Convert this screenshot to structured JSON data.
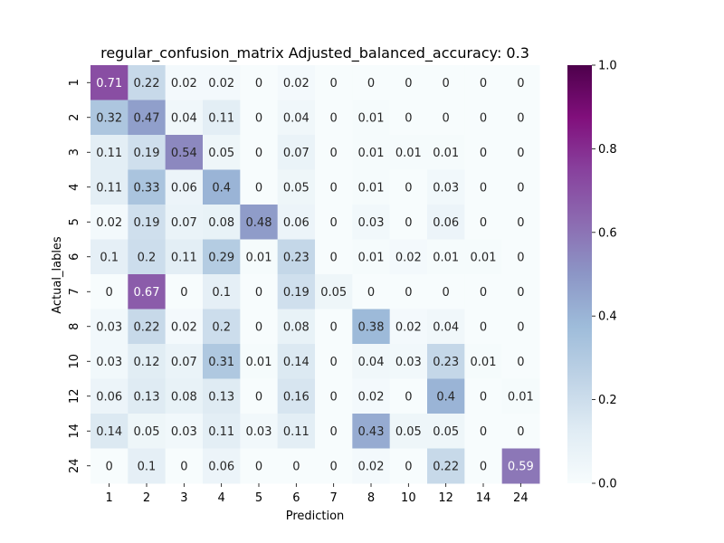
{
  "chart_data": {
    "type": "heatmap",
    "title": "regular_confusion_matrix Adjusted_balanced_accuracy: 0.3",
    "xlabel": "Prediction",
    "ylabel": "Actual_lables",
    "x_categories": [
      "1",
      "2",
      "3",
      "4",
      "5",
      "6",
      "7",
      "8",
      "10",
      "12",
      "14",
      "24"
    ],
    "y_categories": [
      "1",
      "2",
      "3",
      "4",
      "5",
      "6",
      "7",
      "8",
      "10",
      "12",
      "14",
      "24"
    ],
    "values": [
      [
        0.71,
        0.22,
        0.02,
        0.02,
        0,
        0.02,
        0,
        0,
        0,
        0,
        0,
        0
      ],
      [
        0.32,
        0.47,
        0.04,
        0.11,
        0,
        0.04,
        0,
        0.01,
        0,
        0,
        0,
        0
      ],
      [
        0.11,
        0.19,
        0.54,
        0.05,
        0,
        0.07,
        0,
        0.01,
        0.01,
        0.01,
        0,
        0
      ],
      [
        0.11,
        0.33,
        0.06,
        0.4,
        0,
        0.05,
        0,
        0.01,
        0,
        0.03,
        0,
        0
      ],
      [
        0.02,
        0.19,
        0.07,
        0.08,
        0.48,
        0.06,
        0,
        0.03,
        0,
        0.06,
        0,
        0
      ],
      [
        0.1,
        0.2,
        0.11,
        0.29,
        0.01,
        0.23,
        0,
        0.01,
        0.02,
        0.01,
        0.01,
        0
      ],
      [
        0,
        0.67,
        0,
        0.1,
        0,
        0.19,
        0.05,
        0,
        0,
        0,
        0,
        0
      ],
      [
        0.03,
        0.22,
        0.02,
        0.2,
        0,
        0.08,
        0,
        0.38,
        0.02,
        0.04,
        0,
        0
      ],
      [
        0.03,
        0.12,
        0.07,
        0.31,
        0.01,
        0.14,
        0,
        0.04,
        0.03,
        0.23,
        0.01,
        0
      ],
      [
        0.06,
        0.13,
        0.08,
        0.13,
        0,
        0.16,
        0,
        0.02,
        0,
        0.4,
        0,
        0.01
      ],
      [
        0.14,
        0.05,
        0.03,
        0.11,
        0.03,
        0.11,
        0,
        0.43,
        0.05,
        0.05,
        0,
        0
      ],
      [
        0,
        0.1,
        0,
        0.06,
        0,
        0,
        0,
        0.02,
        0,
        0.22,
        0,
        0.59
      ]
    ],
    "colorbar": {
      "range": [
        0,
        1.0
      ],
      "ticks": [
        "0.0",
        "0.2",
        "0.4",
        "0.6",
        "0.8",
        "1.0"
      ],
      "colormap": "BuPu",
      "stops": [
        "#f7fcfd",
        "#e0ecf4",
        "#bfd3e6",
        "#9ebcda",
        "#8c96c6",
        "#8c6bb1",
        "#88419d",
        "#810f7c",
        "#4d004b"
      ]
    }
  }
}
